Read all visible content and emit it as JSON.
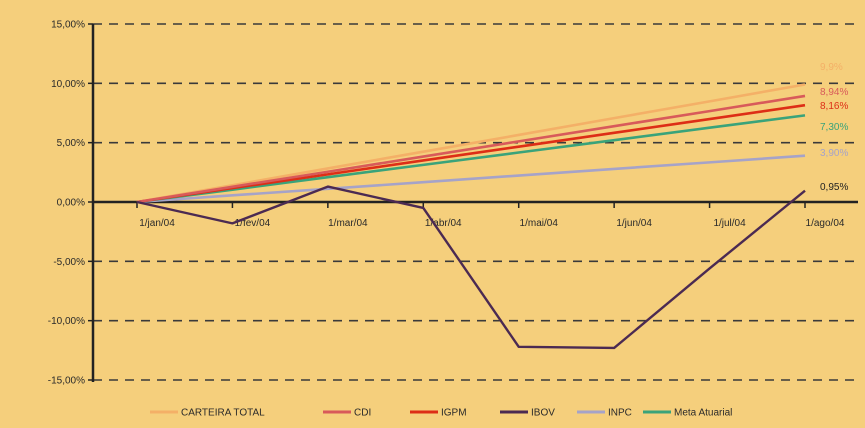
{
  "chart_data": {
    "type": "line",
    "title": "",
    "xlabel": "",
    "ylabel": "",
    "categories": [
      "1/jan/04",
      "1/fev/04",
      "1/mar/04",
      "1/abr/04",
      "1/mai/04",
      "1/jun/04",
      "1/jul/04",
      "1/ago/04"
    ],
    "ylim": [
      -15,
      15
    ],
    "yticks": [
      "15,00%",
      "10,00%",
      "5,00%",
      "0,00%",
      "-5,00%",
      "-10,00%",
      "-15,00%"
    ],
    "ytick_values": [
      15,
      10,
      5,
      0,
      -5,
      -10,
      -15
    ],
    "grid": "horizontal-dashed",
    "legend_position": "bottom",
    "series": [
      {
        "name": "CARTEIRA TOTAL",
        "color": "#f4b067",
        "values": [
          0,
          1.41,
          2.83,
          4.24,
          5.65,
          7.07,
          8.48,
          9.9
        ],
        "end_label": "9,9%"
      },
      {
        "name": "CDI",
        "color": "#d85a5a",
        "values": [
          0,
          1.28,
          2.55,
          3.83,
          5.11,
          6.39,
          7.66,
          8.94
        ],
        "end_label": "8,94%"
      },
      {
        "name": "IGPM",
        "color": "#dd2e16",
        "values": [
          0,
          1.17,
          2.33,
          3.5,
          4.66,
          5.83,
          6.99,
          8.16
        ],
        "end_label": "8,16%"
      },
      {
        "name": "IBOV",
        "color": "#4b2a52",
        "values": [
          0,
          -1.8,
          1.3,
          -0.5,
          -12.2,
          -12.3,
          -5.6,
          0.95
        ],
        "end_label": "0,95%"
      },
      {
        "name": "INPC",
        "color": "#a6a3c8",
        "values": [
          0,
          0.56,
          1.11,
          1.67,
          2.23,
          2.79,
          3.34,
          3.9
        ],
        "end_label": "3,90%"
      },
      {
        "name": "Meta Atuarial",
        "color": "#3aa37a",
        "values": [
          0,
          1.04,
          2.09,
          3.13,
          4.17,
          5.21,
          6.26,
          7.3
        ],
        "end_label": "7,30%"
      }
    ]
  }
}
